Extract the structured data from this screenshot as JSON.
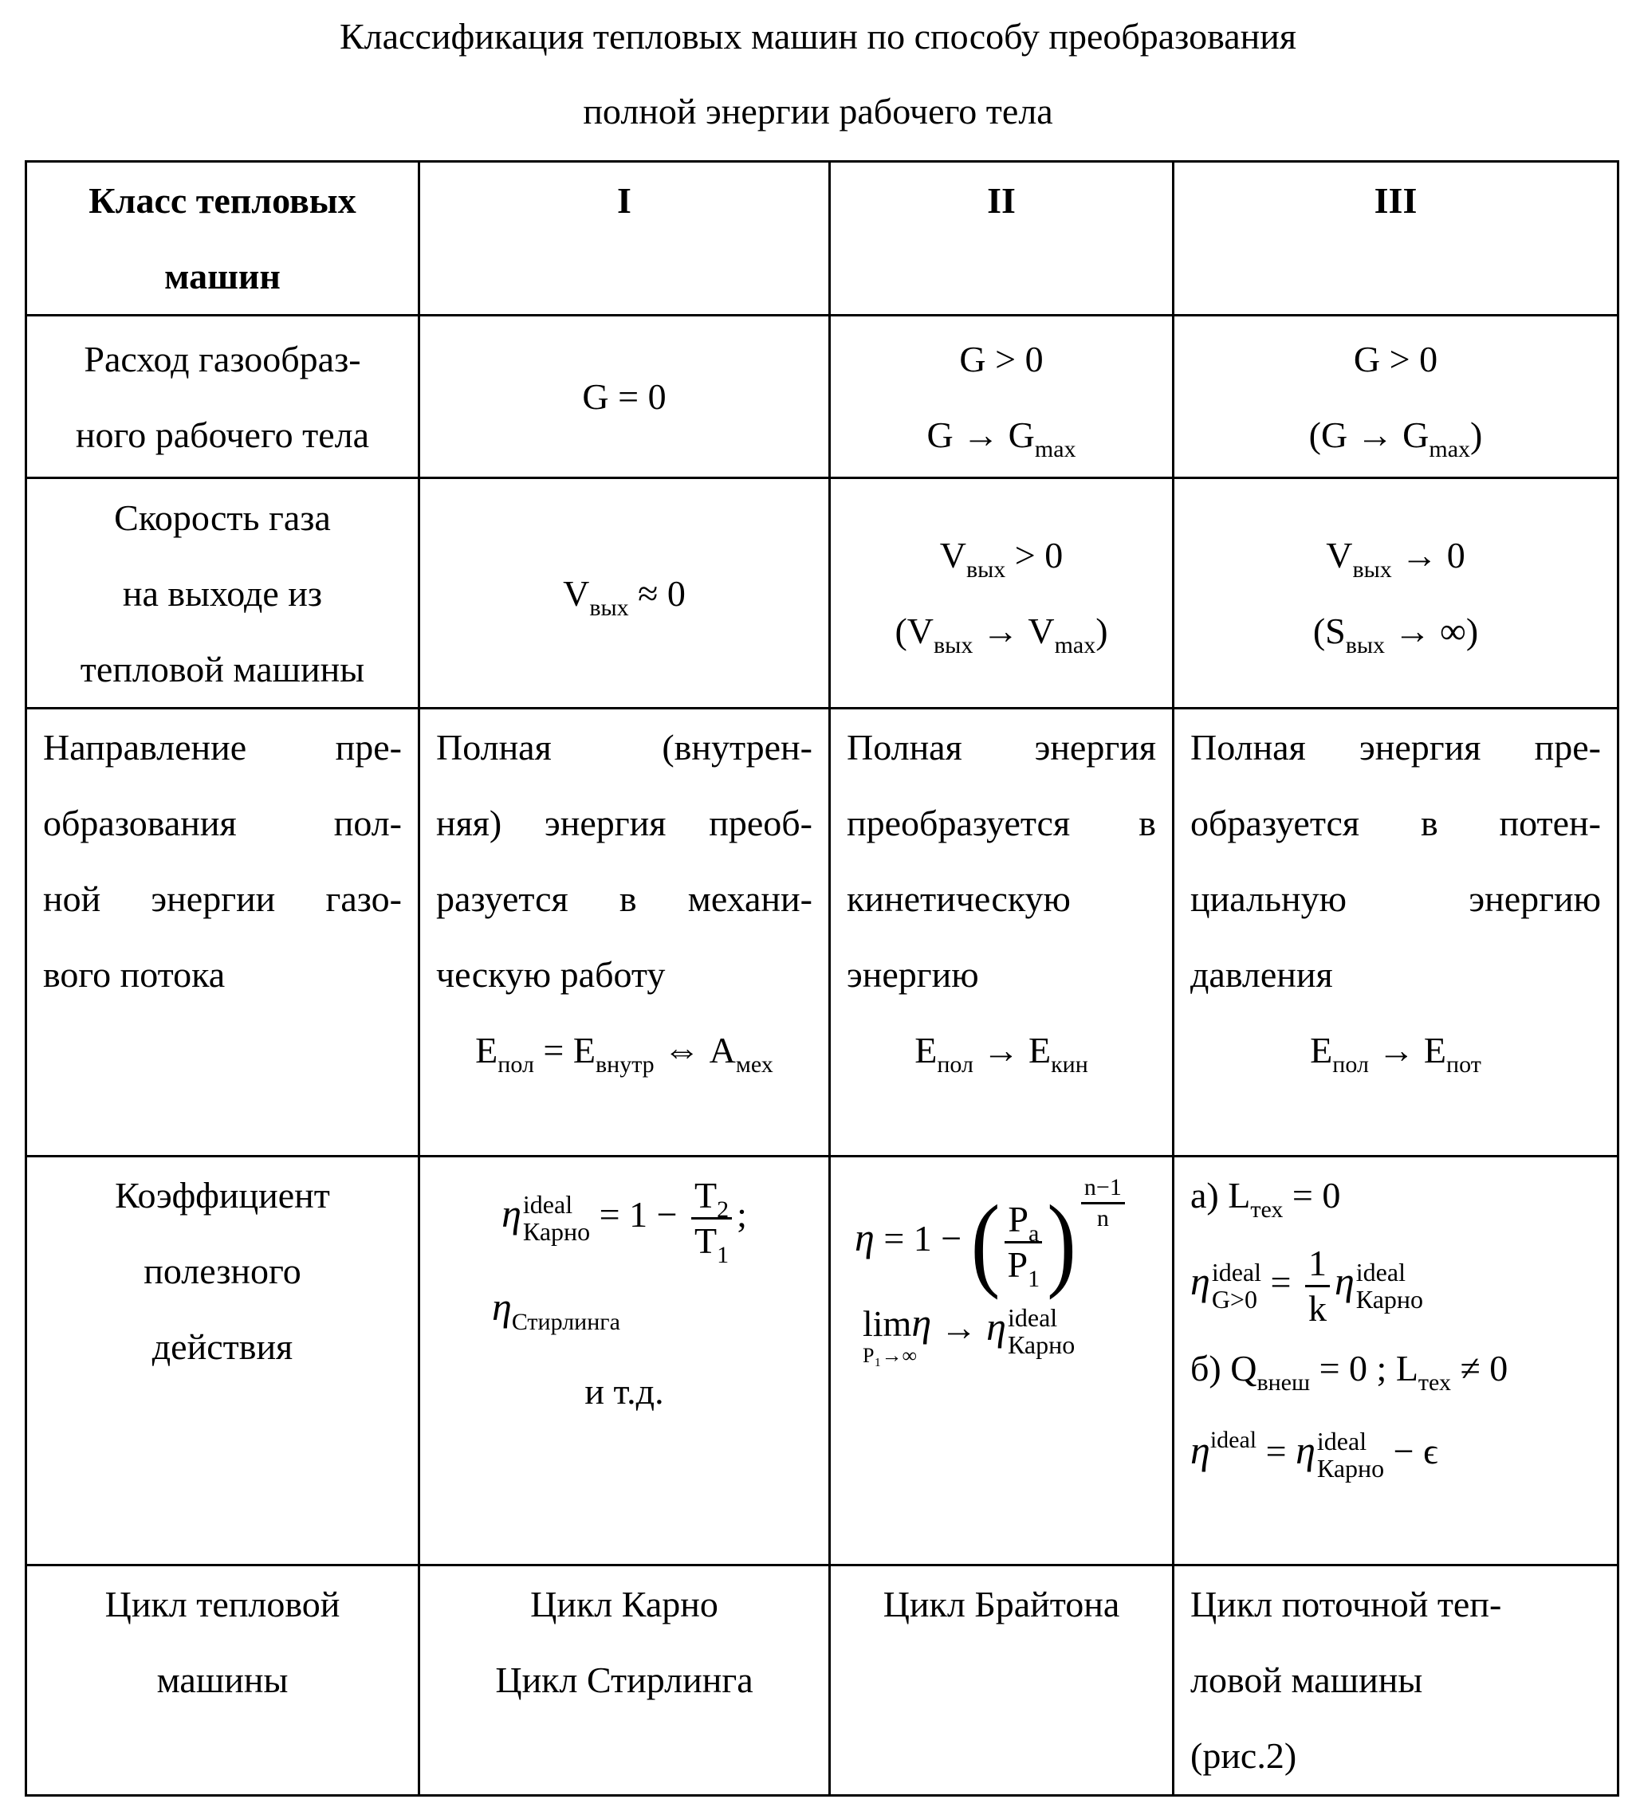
{
  "title": {
    "line1": "Классификация тепловых машин  по способу преобразования",
    "line2": "полной энергии рабочего тела"
  },
  "header": {
    "label": [
      "Класс тепловых",
      "машин"
    ],
    "cols": [
      "I",
      "II",
      "III"
    ]
  },
  "flow": {
    "label": [
      "Расход газообраз-",
      "ного рабочего тела"
    ],
    "c1": "G = 0",
    "c2": {
      "l1": "G > 0",
      "g": "G → G",
      "sub": "max"
    },
    "c3": {
      "l1": "G > 0",
      "g": "(G → G",
      "sub": "max",
      "close": ")"
    }
  },
  "velocity": {
    "label": [
      "Скорость газа",
      "на выходе из",
      "тепловой машины"
    ],
    "c1": {
      "v": "V",
      "sub": "вых",
      "rest": " ≈ 0"
    },
    "c2": {
      "v": "V",
      "sub": "вых",
      "rest": " > 0",
      "open": "(V",
      "sub2": "вых",
      "mid": " → V",
      "sub3": "max",
      "close": ")"
    },
    "c3": {
      "v": "V",
      "sub": "вых",
      "rest": " → 0",
      "open": "(S",
      "sub2": "вых",
      "mid": " → ∞)"
    }
  },
  "direction": {
    "label": [
      "Направление пре-",
      "образования пол-",
      "ной энергии газо-",
      "вого потока"
    ],
    "c1": {
      "lines": [
        "Полная (внутрен-",
        "няя) энергия преоб-",
        "разуется в механи-",
        "ческую работу"
      ],
      "f": {
        "e": "E",
        "s1": "пол",
        "eq": " = E",
        "s2": "внутр",
        "iff": " ⇔ A",
        "s3": "мех"
      }
    },
    "c2": {
      "lines": [
        "Полная энергия",
        "преобразуется в",
        "кинетическую",
        "энергию"
      ],
      "f": {
        "e": "E",
        "s1": "пол",
        "arr": " → E",
        "s2": "кин"
      }
    },
    "c3": {
      "lines": [
        "Полная энергия пре-",
        "образуется в потен-",
        "циальную энергию",
        "давления"
      ],
      "f": {
        "e": "E",
        "s1": "пол",
        "arr": " → E",
        "s2": "пот"
      }
    }
  },
  "efficiency": {
    "label": [
      "Коэффициент",
      "полезного",
      "действия"
    ],
    "c1": {
      "eta": "η",
      "sup": "ideal",
      "sub": "Карно",
      "eq": " = 1 − ",
      "num": "T",
      "numsub": "2",
      "den": "T",
      "densub": "1",
      "semi": ";",
      "eta2": "η",
      "sub2": "Стирлинга",
      "etc": "и т.д."
    },
    "c2": {
      "eta": "η",
      "eq": " = 1 − ",
      "num": "P",
      "numsub": "a",
      "den": "P",
      "densub": "1",
      "expnum": "n−1",
      "expden": "n",
      "lim": "lim",
      "limeta": "η",
      "limunder": "P₁→∞",
      "arr": " → ",
      "eta2": "η",
      "sup": "ideal",
      "sub": "Карно"
    },
    "c3": {
      "a": "а) L",
      "asub": "тех",
      "aeq": " = 0",
      "eta": "η",
      "sup": "ideal",
      "sub": "G>0",
      "eq": " = ",
      "num": "1",
      "den": "k",
      "eta2": "η",
      "sup2": "ideal",
      "sub2": "Карно",
      "b": "б) Q",
      "bsub": "внеш",
      "beq": " = 0 ; L",
      "bsub2": "тех",
      "bne": " ≠ 0",
      "eta3": "η",
      "sup3": "ideal",
      "eq3": " = ",
      "eta4": "η",
      "sup4": "ideal",
      "sub4": "Карно",
      "minus": " − ϵ"
    }
  },
  "cycle": {
    "label": [
      "Цикл тепловой",
      "машины"
    ],
    "c1": [
      "Цикл Карно",
      "Цикл Стирлинга"
    ],
    "c2": "Цикл Брайтона",
    "c3": [
      "Цикл поточной теп-",
      "ловой машины",
      "(рис.2)"
    ]
  }
}
